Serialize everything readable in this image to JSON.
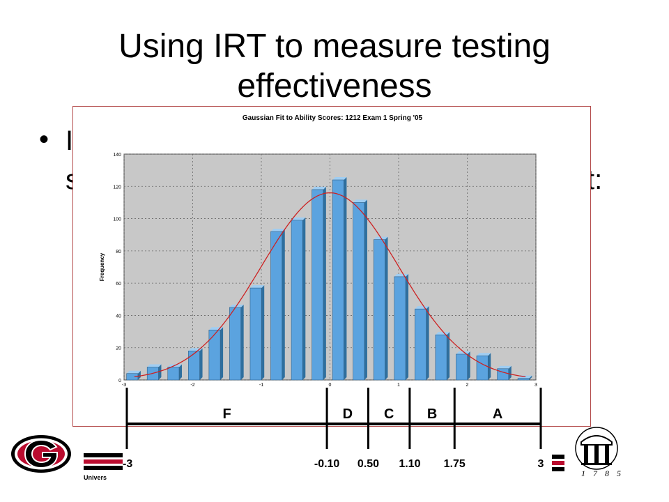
{
  "slide": {
    "title_line1": "Using IRT to measure testing",
    "title_line2": "effectiveness",
    "bullet_fragment_1": "I",
    "bullet_fragment_2": "s",
    "bullet_fragment_3": "t:",
    "footer_univ": "Univers",
    "logo_year": "1 7 8 5"
  },
  "chart_data": {
    "type": "bar",
    "title": "Gaussian Fit to Ability Scores: 1212 Exam 1 Spring '05",
    "xlabel": "",
    "ylabel": "Frequency",
    "xlim": [
      -3,
      3
    ],
    "ylim": [
      0,
      140
    ],
    "grid": true,
    "x_ticks": [
      "-3",
      "-2",
      "-1",
      "0",
      "1",
      "2",
      "3"
    ],
    "y_ticks": [
      "0",
      "20",
      "40",
      "60",
      "80",
      "100",
      "120",
      "140"
    ],
    "bin_centers": [
      -2.85,
      -2.55,
      -2.25,
      -1.95,
      -1.65,
      -1.35,
      -1.05,
      -0.75,
      -0.45,
      -0.15,
      0.15,
      0.45,
      0.75,
      1.05,
      1.35,
      1.65,
      1.95,
      2.25,
      2.55,
      2.85
    ],
    "values": [
      4,
      8,
      8,
      18,
      31,
      45,
      57,
      92,
      99,
      118,
      124,
      110,
      87,
      64,
      44,
      28,
      16,
      15,
      7,
      1
    ],
    "fit": {
      "name": "Gaussian fit",
      "mean": 0.0,
      "sd": 1.0,
      "peak": 116
    },
    "colors": {
      "bar": "#5ba3df",
      "bar_side": "#2f6f9e",
      "plot_bg": "#c8c8c8",
      "fit": "#cc2222"
    },
    "grade_scale": {
      "boundaries": [
        -3,
        -0.1,
        0.5,
        1.1,
        1.75,
        3
      ],
      "boundary_labels": [
        "-3",
        "-0.10",
        "0.50",
        "1.10",
        "1.75",
        "3"
      ],
      "grades": [
        "F",
        "D",
        "C",
        "B",
        "A"
      ]
    }
  }
}
